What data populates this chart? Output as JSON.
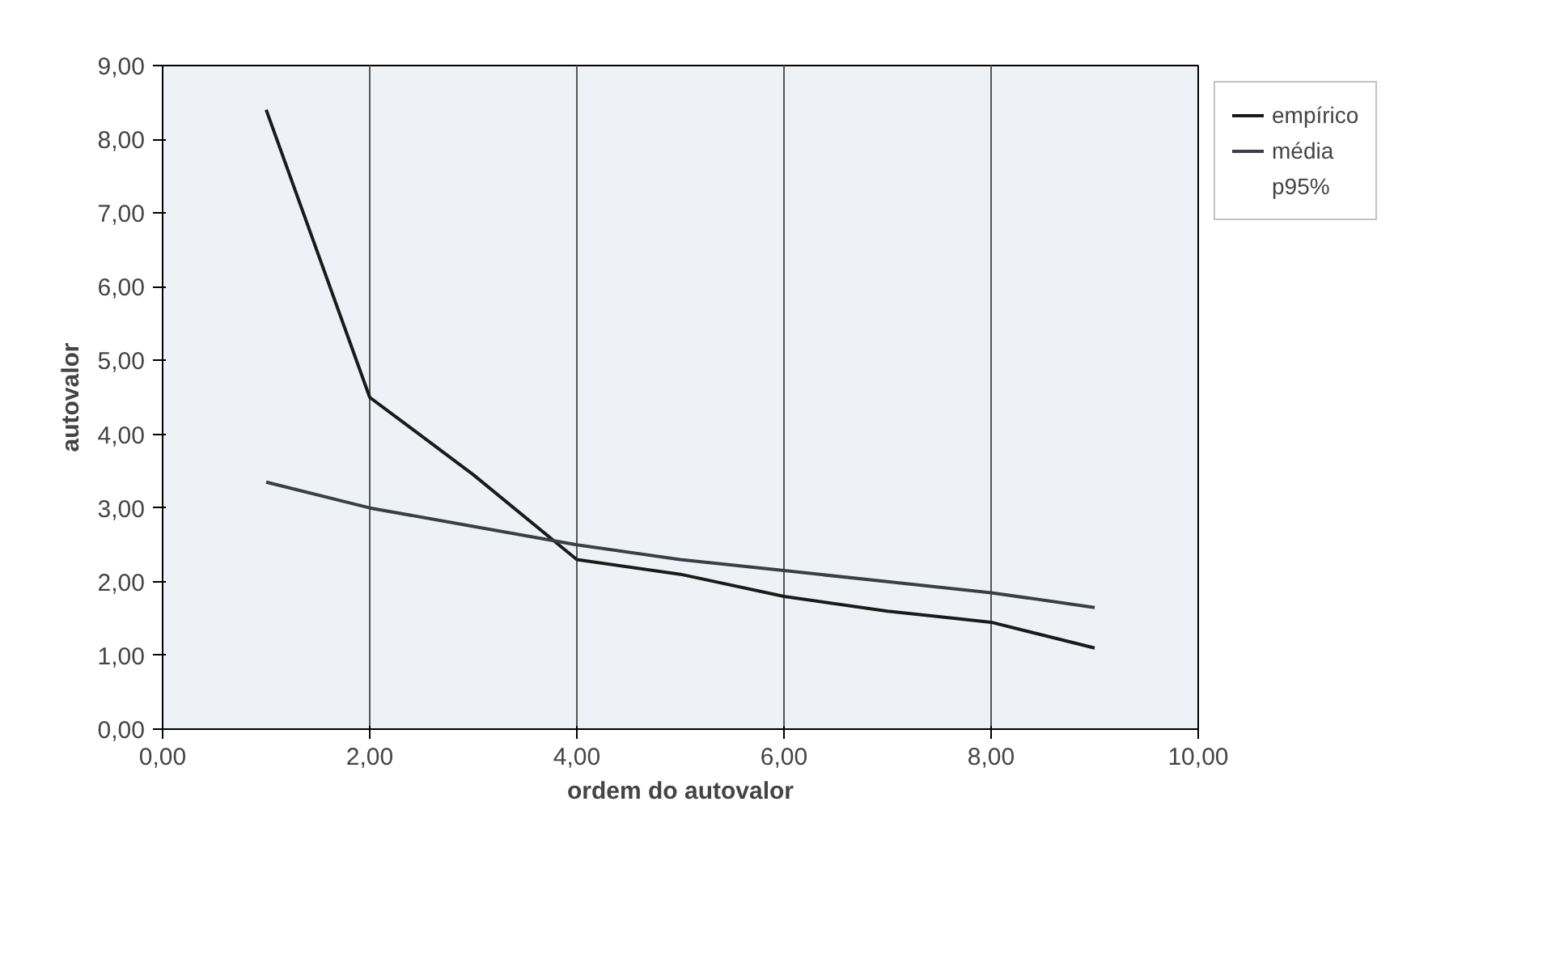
{
  "chart_data": {
    "type": "line",
    "xlabel": "ordem do autovalor",
    "ylabel": "autovalor",
    "x": [
      1,
      2,
      3,
      4,
      5,
      6,
      7,
      8,
      9
    ],
    "series": [
      {
        "name": "empírico",
        "color": "#1a1a1a",
        "values": [
          8.4,
          4.5,
          3.45,
          2.3,
          2.1,
          1.8,
          1.6,
          1.45,
          1.1
        ]
      },
      {
        "name": "média",
        "color": "#3a3f45",
        "values": [
          3.35,
          3.0,
          2.75,
          2.5,
          2.3,
          2.15,
          2.0,
          1.85,
          1.65
        ]
      },
      {
        "name": "p95%",
        "values": [
          null,
          null,
          null,
          null,
          null,
          null,
          null,
          null,
          null
        ]
      }
    ],
    "xlim": [
      0,
      10
    ],
    "ylim": [
      0,
      9
    ],
    "xticks": [
      {
        "value": 0,
        "label": "0,00"
      },
      {
        "value": 2,
        "label": "2,00"
      },
      {
        "value": 4,
        "label": "4,00"
      },
      {
        "value": 6,
        "label": "6,00"
      },
      {
        "value": 8,
        "label": "8,00"
      },
      {
        "value": 10,
        "label": "10,00"
      }
    ],
    "yticks": [
      {
        "value": 0,
        "label": "0,00"
      },
      {
        "value": 1,
        "label": "1,00"
      },
      {
        "value": 2,
        "label": "2,00"
      },
      {
        "value": 3,
        "label": "3,00"
      },
      {
        "value": 4,
        "label": "4,00"
      },
      {
        "value": 5,
        "label": "5,00"
      },
      {
        "value": 6,
        "label": "6,00"
      },
      {
        "value": 7,
        "label": "7,00"
      },
      {
        "value": 8,
        "label": "8,00"
      },
      {
        "value": 9,
        "label": "9,00"
      }
    ],
    "grid": "x",
    "legend": "right",
    "line_style": "solid"
  }
}
